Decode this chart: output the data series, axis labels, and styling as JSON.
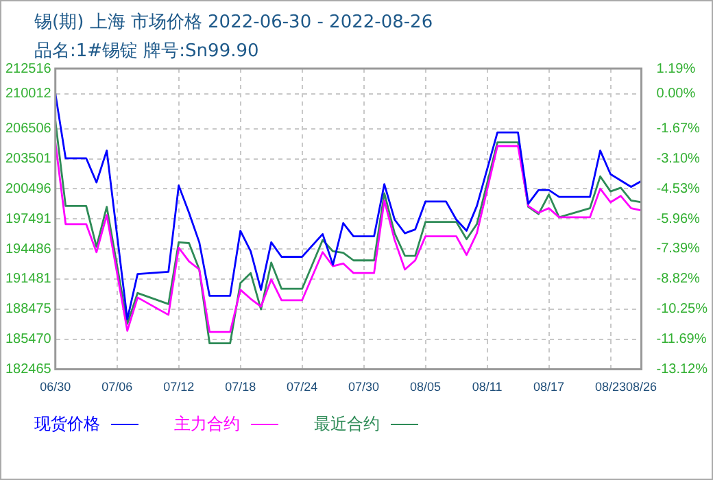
{
  "chart_data": {
    "type": "line",
    "title": "锡(期) 上海 市场价格 2022-06-30 - 2022-08-26",
    "subtitle": "品名:1#锡锭 牌号:Sn99.90",
    "xlim": [
      "2022-06-30",
      "2022-08-26"
    ],
    "xticks": [
      {
        "value": "2022-06-30",
        "label": "06/30"
      },
      {
        "value": "2022-07-06",
        "label": "07/06"
      },
      {
        "value": "2022-07-12",
        "label": "07/12"
      },
      {
        "value": "2022-07-18",
        "label": "07/18"
      },
      {
        "value": "2022-07-24",
        "label": "07/24"
      },
      {
        "value": "2022-07-30",
        "label": "07/30"
      },
      {
        "value": "2022-08-05",
        "label": "08/05"
      },
      {
        "value": "2022-08-11",
        "label": "08/11"
      },
      {
        "value": "2022-08-17",
        "label": "08/17"
      },
      {
        "value": "2022-08-23",
        "label": "08/23"
      },
      {
        "value": "2022-08-26",
        "label": "08/26"
      }
    ],
    "ylim": [
      182465,
      212516
    ],
    "yticks": [
      182465,
      185470,
      188475,
      191481,
      194486,
      197491,
      200496,
      203501,
      206506,
      210012,
      212516
    ],
    "y2lim": [
      -13.12,
      1.19
    ],
    "y2ticks": [
      {
        "value": -13.12,
        "label": "-13.12%"
      },
      {
        "value": -11.69,
        "label": "-11.69%"
      },
      {
        "value": -10.25,
        "label": "-10.25%"
      },
      {
        "value": -8.82,
        "label": "-8.82%"
      },
      {
        "value": -7.39,
        "label": "-7.39%"
      },
      {
        "value": -5.96,
        "label": "-5.96%"
      },
      {
        "value": -4.53,
        "label": "-4.53%"
      },
      {
        "value": -3.1,
        "label": "-3.10%"
      },
      {
        "value": -1.67,
        "label": "-1.67%"
      },
      {
        "value": 0,
        "label": "0.00%"
      },
      {
        "value": 1.19,
        "label": "1.19%"
      }
    ],
    "grid": true,
    "legend": "bottom",
    "series": [
      {
        "name": "现货价格",
        "color": "#0000ff",
        "x": [
          "2022-06-30",
          "2022-07-01",
          "2022-07-03",
          "2022-07-04",
          "2022-07-05",
          "2022-07-07",
          "2022-07-08",
          "2022-07-11",
          "2022-07-12",
          "2022-07-13",
          "2022-07-14",
          "2022-07-15",
          "2022-07-17",
          "2022-07-18",
          "2022-07-19",
          "2022-07-20",
          "2022-07-21",
          "2022-07-22",
          "2022-07-24",
          "2022-07-26",
          "2022-07-27",
          "2022-07-28",
          "2022-07-29",
          "2022-07-31",
          "2022-08-01",
          "2022-08-02",
          "2022-08-03",
          "2022-08-04",
          "2022-08-05",
          "2022-08-07",
          "2022-08-08",
          "2022-08-09",
          "2022-08-10",
          "2022-08-12",
          "2022-08-14",
          "2022-08-15",
          "2022-08-16",
          "2022-08-17",
          "2022-08-18",
          "2022-08-21",
          "2022-08-22",
          "2022-08-23",
          "2022-08-25",
          "2022-08-26"
        ],
        "values": [
          210012,
          203550,
          203550,
          201140,
          204320,
          187460,
          191980,
          192200,
          200820,
          198100,
          195150,
          189800,
          189800,
          196300,
          194250,
          190400,
          195150,
          193700,
          193700,
          195970,
          192900,
          197060,
          195750,
          195750,
          200960,
          197420,
          196060,
          196430,
          199230,
          199230,
          197420,
          196300,
          198780,
          206130,
          206130,
          199010,
          200370,
          200370,
          199690,
          199690,
          204320,
          201960,
          200690,
          201270
        ]
      },
      {
        "name": "主力合约",
        "color": "#ff00ff",
        "x": [
          "2022-06-30",
          "2022-07-01",
          "2022-07-03",
          "2022-07-04",
          "2022-07-05",
          "2022-07-07",
          "2022-07-08",
          "2022-07-11",
          "2022-07-12",
          "2022-07-13",
          "2022-07-14",
          "2022-07-15",
          "2022-07-17",
          "2022-07-18",
          "2022-07-19",
          "2022-07-20",
          "2022-07-21",
          "2022-07-22",
          "2022-07-24",
          "2022-07-26",
          "2022-07-27",
          "2022-07-28",
          "2022-07-29",
          "2022-07-31",
          "2022-08-01",
          "2022-08-02",
          "2022-08-03",
          "2022-08-04",
          "2022-08-05",
          "2022-08-08",
          "2022-08-09",
          "2022-08-10",
          "2022-08-12",
          "2022-08-14",
          "2022-08-15",
          "2022-08-16",
          "2022-08-17",
          "2022-08-18",
          "2022-08-21",
          "2022-08-22",
          "2022-08-23",
          "2022-08-24",
          "2022-08-25",
          "2022-08-26"
        ],
        "values": [
          205140,
          196970,
          196970,
          194160,
          197870,
          186310,
          189630,
          187900,
          194610,
          193250,
          192430,
          186190,
          186190,
          190400,
          189500,
          188720,
          191440,
          189360,
          189360,
          194160,
          192760,
          193030,
          192080,
          192080,
          199330,
          195390,
          192430,
          193340,
          195750,
          195750,
          193890,
          196060,
          204770,
          204770,
          198780,
          198100,
          198560,
          197650,
          197650,
          200510,
          199150,
          199780,
          198560,
          198330
        ]
      },
      {
        "name": "最近合约",
        "color": "#2e8b57",
        "x": [
          "2022-06-30",
          "2022-07-01",
          "2022-07-03",
          "2022-07-04",
          "2022-07-05",
          "2022-07-07",
          "2022-07-08",
          "2022-07-11",
          "2022-07-12",
          "2022-07-13",
          "2022-07-14",
          "2022-07-15",
          "2022-07-17",
          "2022-07-18",
          "2022-07-19",
          "2022-07-20",
          "2022-07-21",
          "2022-07-22",
          "2022-07-24",
          "2022-07-26",
          "2022-07-27",
          "2022-07-28",
          "2022-07-29",
          "2022-07-31",
          "2022-08-01",
          "2022-08-02",
          "2022-08-03",
          "2022-08-04",
          "2022-08-05",
          "2022-08-08",
          "2022-08-09",
          "2022-08-10",
          "2022-08-12",
          "2022-08-14",
          "2022-08-15",
          "2022-08-16",
          "2022-08-17",
          "2022-08-18",
          "2022-08-21",
          "2022-08-22",
          "2022-08-23",
          "2022-08-24",
          "2022-08-25",
          "2022-08-26"
        ],
        "values": [
          207300,
          198780,
          198780,
          194700,
          198690,
          187000,
          190080,
          188980,
          195150,
          195070,
          192430,
          185050,
          185050,
          191080,
          192080,
          188450,
          193120,
          190500,
          190500,
          195380,
          194250,
          194110,
          193340,
          193340,
          200050,
          196060,
          193800,
          193800,
          197190,
          197190,
          195470,
          196970,
          205140,
          205140,
          198690,
          197970,
          199920,
          197650,
          198560,
          201740,
          200240,
          200600,
          199330,
          199150
        ]
      }
    ]
  }
}
